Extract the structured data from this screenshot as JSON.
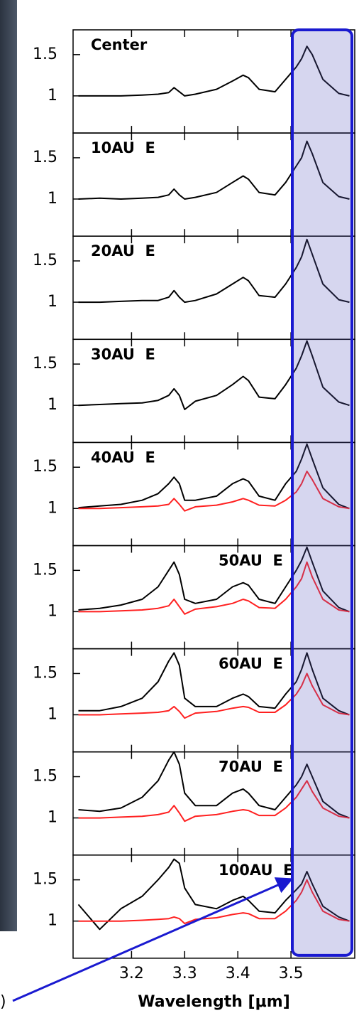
{
  "chart_data": [
    {
      "type": "line",
      "title": "Center",
      "x": [
        3.1,
        3.14,
        3.18,
        3.22,
        3.25,
        3.27,
        3.28,
        3.29,
        3.3,
        3.32,
        3.36,
        3.39,
        3.41,
        3.42,
        3.44,
        3.47,
        3.49,
        3.51,
        3.52,
        3.53,
        3.54,
        3.56,
        3.59,
        3.61
      ],
      "series": [
        {
          "color": "#000000",
          "values": [
            1,
            1,
            1,
            1.01,
            1.02,
            1.04,
            1.1,
            1.05,
            1,
            1.02,
            1.08,
            1.18,
            1.25,
            1.22,
            1.08,
            1.05,
            1.2,
            1.35,
            1.45,
            1.6,
            1.5,
            1.2,
            1.03,
            1
          ]
        }
      ],
      "xlim": [
        3.09,
        3.62
      ],
      "ylim": [
        0.55,
        1.8
      ],
      "xticks": [
        3.2,
        3.3,
        3.4,
        3.5
      ],
      "yticks": [
        1,
        1.5
      ]
    },
    {
      "type": "line",
      "title": "10AU  E",
      "x": [
        3.1,
        3.14,
        3.18,
        3.22,
        3.25,
        3.27,
        3.28,
        3.29,
        3.3,
        3.32,
        3.36,
        3.39,
        3.41,
        3.42,
        3.44,
        3.47,
        3.49,
        3.51,
        3.52,
        3.53,
        3.54,
        3.56,
        3.59,
        3.61
      ],
      "series": [
        {
          "color": "#000000",
          "values": [
            1,
            1.01,
            1,
            1.01,
            1.02,
            1.05,
            1.12,
            1.05,
            1,
            1.02,
            1.08,
            1.2,
            1.28,
            1.24,
            1.08,
            1.05,
            1.2,
            1.4,
            1.5,
            1.7,
            1.55,
            1.2,
            1.03,
            1
          ]
        }
      ],
      "xlim": [
        3.09,
        3.62
      ],
      "ylim": [
        0.55,
        1.8
      ],
      "xticks": [
        3.2,
        3.3,
        3.4,
        3.5
      ],
      "yticks": [
        1,
        1.5
      ]
    },
    {
      "type": "line",
      "title": "20AU  E",
      "x": [
        3.1,
        3.14,
        3.18,
        3.22,
        3.25,
        3.27,
        3.28,
        3.29,
        3.3,
        3.32,
        3.36,
        3.39,
        3.41,
        3.42,
        3.44,
        3.47,
        3.49,
        3.51,
        3.52,
        3.53,
        3.54,
        3.56,
        3.59,
        3.61
      ],
      "series": [
        {
          "color": "#000000",
          "values": [
            1,
            1,
            1.01,
            1.02,
            1.02,
            1.06,
            1.14,
            1.06,
            1,
            1.02,
            1.1,
            1.22,
            1.3,
            1.26,
            1.08,
            1.06,
            1.22,
            1.42,
            1.55,
            1.76,
            1.58,
            1.22,
            1.03,
            1
          ]
        }
      ],
      "xlim": [
        3.09,
        3.62
      ],
      "ylim": [
        0.55,
        1.8
      ],
      "xticks": [
        3.2,
        3.3,
        3.4,
        3.5
      ],
      "yticks": [
        1,
        1.5
      ]
    },
    {
      "type": "line",
      "title": "30AU  E",
      "x": [
        3.1,
        3.14,
        3.18,
        3.22,
        3.25,
        3.27,
        3.28,
        3.29,
        3.3,
        3.32,
        3.36,
        3.39,
        3.41,
        3.42,
        3.44,
        3.47,
        3.49,
        3.51,
        3.52,
        3.53,
        3.54,
        3.56,
        3.59,
        3.61
      ],
      "series": [
        {
          "color": "#000000",
          "values": [
            1,
            1.01,
            1.02,
            1.03,
            1.06,
            1.12,
            1.2,
            1.12,
            0.95,
            1.05,
            1.12,
            1.25,
            1.35,
            1.3,
            1.1,
            1.08,
            1.25,
            1.45,
            1.6,
            1.78,
            1.6,
            1.22,
            1.04,
            1
          ]
        }
      ],
      "xlim": [
        3.09,
        3.62
      ],
      "ylim": [
        0.55,
        1.8
      ],
      "xticks": [
        3.2,
        3.3,
        3.4,
        3.5
      ],
      "yticks": [
        1,
        1.5
      ]
    },
    {
      "type": "line",
      "title": "40AU  E",
      "x": [
        3.1,
        3.14,
        3.18,
        3.22,
        3.25,
        3.27,
        3.28,
        3.29,
        3.3,
        3.32,
        3.36,
        3.39,
        3.41,
        3.42,
        3.44,
        3.47,
        3.49,
        3.51,
        3.52,
        3.53,
        3.54,
        3.56,
        3.59,
        3.61
      ],
      "series": [
        {
          "color": "#000000",
          "values": [
            1.01,
            1.03,
            1.05,
            1.1,
            1.18,
            1.3,
            1.38,
            1.3,
            1.1,
            1.1,
            1.15,
            1.3,
            1.36,
            1.33,
            1.15,
            1.1,
            1.3,
            1.45,
            1.6,
            1.78,
            1.6,
            1.25,
            1.05,
            1
          ]
        },
        {
          "color": "#ff2020",
          "values": [
            1,
            1,
            1.01,
            1.02,
            1.03,
            1.05,
            1.12,
            1.05,
            0.97,
            1.02,
            1.04,
            1.08,
            1.12,
            1.1,
            1.04,
            1.03,
            1.1,
            1.2,
            1.3,
            1.45,
            1.35,
            1.12,
            1.02,
            1
          ]
        }
      ],
      "xlim": [
        3.09,
        3.62
      ],
      "ylim": [
        0.55,
        1.8
      ],
      "xticks": [
        3.2,
        3.3,
        3.4,
        3.5
      ],
      "yticks": [
        1,
        1.5
      ]
    },
    {
      "type": "line",
      "title": "50AU  E",
      "x": [
        3.1,
        3.14,
        3.18,
        3.22,
        3.25,
        3.27,
        3.28,
        3.29,
        3.3,
        3.32,
        3.36,
        3.39,
        3.41,
        3.42,
        3.44,
        3.47,
        3.49,
        3.51,
        3.52,
        3.53,
        3.54,
        3.56,
        3.59,
        3.61
      ],
      "series": [
        {
          "color": "#000000",
          "values": [
            1.02,
            1.04,
            1.08,
            1.15,
            1.3,
            1.5,
            1.6,
            1.45,
            1.15,
            1.1,
            1.15,
            1.3,
            1.35,
            1.32,
            1.15,
            1.1,
            1.3,
            1.5,
            1.62,
            1.78,
            1.6,
            1.25,
            1.05,
            1
          ]
        },
        {
          "color": "#ff2020",
          "values": [
            1,
            1,
            1.01,
            1.02,
            1.04,
            1.07,
            1.15,
            1.06,
            0.97,
            1.03,
            1.06,
            1.1,
            1.15,
            1.13,
            1.05,
            1.04,
            1.15,
            1.3,
            1.4,
            1.6,
            1.42,
            1.15,
            1.02,
            1
          ]
        }
      ],
      "xlim": [
        3.09,
        3.62
      ],
      "ylim": [
        0.55,
        1.8
      ],
      "xticks": [
        3.2,
        3.3,
        3.4,
        3.5
      ],
      "yticks": [
        1,
        1.5
      ]
    },
    {
      "type": "line",
      "title": "60AU  E",
      "x": [
        3.1,
        3.14,
        3.18,
        3.22,
        3.25,
        3.27,
        3.28,
        3.29,
        3.3,
        3.32,
        3.36,
        3.39,
        3.41,
        3.42,
        3.44,
        3.47,
        3.49,
        3.51,
        3.52,
        3.53,
        3.54,
        3.56,
        3.59,
        3.61
      ],
      "series": [
        {
          "color": "#000000",
          "values": [
            1.05,
            1.05,
            1.1,
            1.2,
            1.4,
            1.65,
            1.75,
            1.6,
            1.2,
            1.1,
            1.1,
            1.2,
            1.25,
            1.22,
            1.1,
            1.08,
            1.25,
            1.4,
            1.55,
            1.75,
            1.55,
            1.2,
            1.05,
            1
          ]
        },
        {
          "color": "#ff2020",
          "values": [
            1,
            1,
            1.01,
            1.02,
            1.03,
            1.05,
            1.1,
            1.04,
            0.96,
            1.02,
            1.04,
            1.08,
            1.1,
            1.09,
            1.03,
            1.03,
            1.12,
            1.25,
            1.35,
            1.5,
            1.35,
            1.12,
            1.02,
            1
          ]
        }
      ],
      "xlim": [
        3.09,
        3.62
      ],
      "ylim": [
        0.55,
        1.8
      ],
      "xticks": [
        3.2,
        3.3,
        3.4,
        3.5
      ],
      "yticks": [
        1,
        1.5
      ]
    },
    {
      "type": "line",
      "title": "70AU  E",
      "x": [
        3.1,
        3.14,
        3.18,
        3.22,
        3.25,
        3.27,
        3.28,
        3.29,
        3.3,
        3.32,
        3.36,
        3.39,
        3.41,
        3.42,
        3.44,
        3.47,
        3.49,
        3.51,
        3.52,
        3.53,
        3.54,
        3.56,
        3.59,
        3.61
      ],
      "series": [
        {
          "color": "#000000",
          "values": [
            1.1,
            1.08,
            1.12,
            1.25,
            1.45,
            1.7,
            1.8,
            1.65,
            1.3,
            1.15,
            1.15,
            1.3,
            1.35,
            1.3,
            1.15,
            1.1,
            1.25,
            1.4,
            1.5,
            1.65,
            1.5,
            1.2,
            1.05,
            1
          ]
        },
        {
          "color": "#ff2020",
          "values": [
            1,
            1,
            1.01,
            1.02,
            1.04,
            1.07,
            1.15,
            1.06,
            0.96,
            1.02,
            1.04,
            1.08,
            1.1,
            1.09,
            1.03,
            1.03,
            1.12,
            1.25,
            1.35,
            1.45,
            1.32,
            1.12,
            1.02,
            1
          ]
        }
      ],
      "xlim": [
        3.09,
        3.62
      ],
      "ylim": [
        0.55,
        1.8
      ],
      "xticks": [
        3.2,
        3.3,
        3.4,
        3.5
      ],
      "yticks": [
        1,
        1.5
      ]
    },
    {
      "type": "line",
      "title": "100AU  E",
      "x": [
        3.1,
        3.14,
        3.18,
        3.22,
        3.25,
        3.27,
        3.28,
        3.29,
        3.3,
        3.32,
        3.36,
        3.39,
        3.41,
        3.42,
        3.44,
        3.47,
        3.49,
        3.51,
        3.52,
        3.53,
        3.54,
        3.56,
        3.59,
        3.61
      ],
      "series": [
        {
          "color": "#000000",
          "values": [
            1.2,
            0.9,
            1.15,
            1.3,
            1.5,
            1.65,
            1.75,
            1.7,
            1.4,
            1.2,
            1.15,
            1.25,
            1.3,
            1.25,
            1.12,
            1.1,
            1.25,
            1.38,
            1.45,
            1.6,
            1.45,
            1.18,
            1.05,
            1
          ]
        },
        {
          "color": "#ff2020",
          "values": [
            1,
            1,
            1,
            1.01,
            1.02,
            1.03,
            1.05,
            1.03,
            0.97,
            1.02,
            1.04,
            1.08,
            1.1,
            1.09,
            1.03,
            1.03,
            1.12,
            1.25,
            1.35,
            1.5,
            1.35,
            1.12,
            1.02,
            1
          ]
        }
      ],
      "xlim": [
        3.09,
        3.62
      ],
      "ylim": [
        0.55,
        1.8
      ],
      "xticks": [
        3.2,
        3.3,
        3.4,
        3.5
      ],
      "yticks": [
        1,
        1.5
      ],
      "xlabel": "Wavelength [μm]",
      "annotation": ")"
    }
  ]
}
